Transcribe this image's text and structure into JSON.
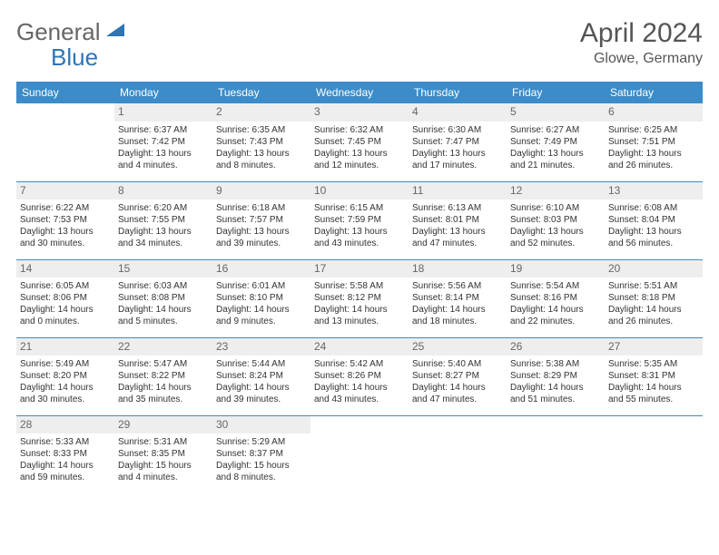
{
  "logo": {
    "text1": "General",
    "text2": "Blue",
    "color1": "#666666",
    "color2": "#2e75b6"
  },
  "title": "April 2024",
  "location": "Glowe, Germany",
  "header_bg": "#3c8cc9",
  "daynum_bg": "#eeeeee",
  "border_color": "#3c8cc9",
  "weekdays": [
    "Sunday",
    "Monday",
    "Tuesday",
    "Wednesday",
    "Thursday",
    "Friday",
    "Saturday"
  ],
  "weeks": [
    [
      null,
      {
        "n": "1",
        "sr": "6:37 AM",
        "ss": "7:42 PM",
        "dl": "13 hours and 4 minutes."
      },
      {
        "n": "2",
        "sr": "6:35 AM",
        "ss": "7:43 PM",
        "dl": "13 hours and 8 minutes."
      },
      {
        "n": "3",
        "sr": "6:32 AM",
        "ss": "7:45 PM",
        "dl": "13 hours and 12 minutes."
      },
      {
        "n": "4",
        "sr": "6:30 AM",
        "ss": "7:47 PM",
        "dl": "13 hours and 17 minutes."
      },
      {
        "n": "5",
        "sr": "6:27 AM",
        "ss": "7:49 PM",
        "dl": "13 hours and 21 minutes."
      },
      {
        "n": "6",
        "sr": "6:25 AM",
        "ss": "7:51 PM",
        "dl": "13 hours and 26 minutes."
      }
    ],
    [
      {
        "n": "7",
        "sr": "6:22 AM",
        "ss": "7:53 PM",
        "dl": "13 hours and 30 minutes."
      },
      {
        "n": "8",
        "sr": "6:20 AM",
        "ss": "7:55 PM",
        "dl": "13 hours and 34 minutes."
      },
      {
        "n": "9",
        "sr": "6:18 AM",
        "ss": "7:57 PM",
        "dl": "13 hours and 39 minutes."
      },
      {
        "n": "10",
        "sr": "6:15 AM",
        "ss": "7:59 PM",
        "dl": "13 hours and 43 minutes."
      },
      {
        "n": "11",
        "sr": "6:13 AM",
        "ss": "8:01 PM",
        "dl": "13 hours and 47 minutes."
      },
      {
        "n": "12",
        "sr": "6:10 AM",
        "ss": "8:03 PM",
        "dl": "13 hours and 52 minutes."
      },
      {
        "n": "13",
        "sr": "6:08 AM",
        "ss": "8:04 PM",
        "dl": "13 hours and 56 minutes."
      }
    ],
    [
      {
        "n": "14",
        "sr": "6:05 AM",
        "ss": "8:06 PM",
        "dl": "14 hours and 0 minutes."
      },
      {
        "n": "15",
        "sr": "6:03 AM",
        "ss": "8:08 PM",
        "dl": "14 hours and 5 minutes."
      },
      {
        "n": "16",
        "sr": "6:01 AM",
        "ss": "8:10 PM",
        "dl": "14 hours and 9 minutes."
      },
      {
        "n": "17",
        "sr": "5:58 AM",
        "ss": "8:12 PM",
        "dl": "14 hours and 13 minutes."
      },
      {
        "n": "18",
        "sr": "5:56 AM",
        "ss": "8:14 PM",
        "dl": "14 hours and 18 minutes."
      },
      {
        "n": "19",
        "sr": "5:54 AM",
        "ss": "8:16 PM",
        "dl": "14 hours and 22 minutes."
      },
      {
        "n": "20",
        "sr": "5:51 AM",
        "ss": "8:18 PM",
        "dl": "14 hours and 26 minutes."
      }
    ],
    [
      {
        "n": "21",
        "sr": "5:49 AM",
        "ss": "8:20 PM",
        "dl": "14 hours and 30 minutes."
      },
      {
        "n": "22",
        "sr": "5:47 AM",
        "ss": "8:22 PM",
        "dl": "14 hours and 35 minutes."
      },
      {
        "n": "23",
        "sr": "5:44 AM",
        "ss": "8:24 PM",
        "dl": "14 hours and 39 minutes."
      },
      {
        "n": "24",
        "sr": "5:42 AM",
        "ss": "8:26 PM",
        "dl": "14 hours and 43 minutes."
      },
      {
        "n": "25",
        "sr": "5:40 AM",
        "ss": "8:27 PM",
        "dl": "14 hours and 47 minutes."
      },
      {
        "n": "26",
        "sr": "5:38 AM",
        "ss": "8:29 PM",
        "dl": "14 hours and 51 minutes."
      },
      {
        "n": "27",
        "sr": "5:35 AM",
        "ss": "8:31 PM",
        "dl": "14 hours and 55 minutes."
      }
    ],
    [
      {
        "n": "28",
        "sr": "5:33 AM",
        "ss": "8:33 PM",
        "dl": "14 hours and 59 minutes."
      },
      {
        "n": "29",
        "sr": "5:31 AM",
        "ss": "8:35 PM",
        "dl": "15 hours and 4 minutes."
      },
      {
        "n": "30",
        "sr": "5:29 AM",
        "ss": "8:37 PM",
        "dl": "15 hours and 8 minutes."
      },
      null,
      null,
      null,
      null
    ]
  ],
  "labels": {
    "sunrise": "Sunrise:",
    "sunset": "Sunset:",
    "daylight": "Daylight:"
  }
}
